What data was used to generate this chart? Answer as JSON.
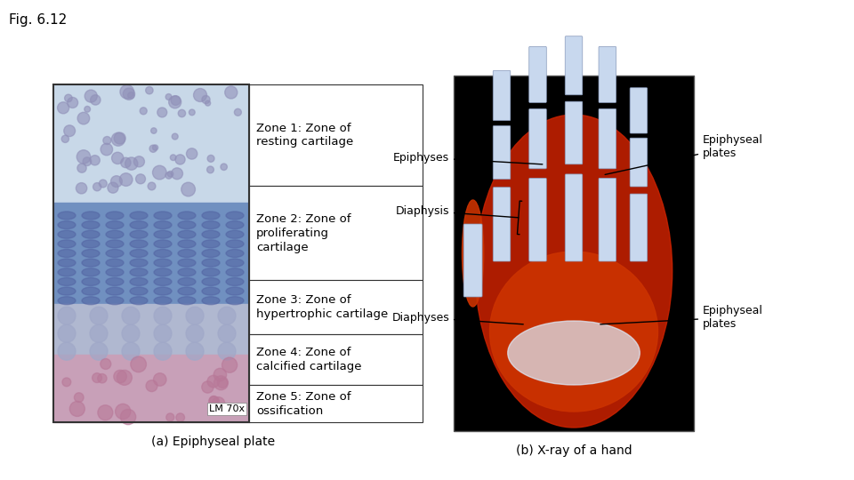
{
  "fig_label": "Fig. 6.12",
  "background_color": "#ffffff",
  "zones": [
    "Zone 1: Zone of\nresting cartilage",
    "Zone 2: Zone of\nproliferating\ncartilage",
    "Zone 3: Zone of\nhypertrophic cartilage",
    "Zone 4: Zone of\ncalcified cartilage",
    "Zone 5: Zone of\nossification"
  ],
  "right_labels_top": [
    "Epiphyses",
    "Diaphysis"
  ],
  "right_label_top_text": "Epiphyseal\nplates",
  "right_labels_bottom": [
    "Diaphyses"
  ],
  "right_label_bottom_text": "Epiphyseal\nplates",
  "caption_left": "(a) Epiphyseal plate",
  "caption_right": "(b) X-ray of a hand",
  "lm_label": "LM 70x",
  "zone_box_color": "#ffffff",
  "zone_border_color": "#000000",
  "text_color": "#000000"
}
